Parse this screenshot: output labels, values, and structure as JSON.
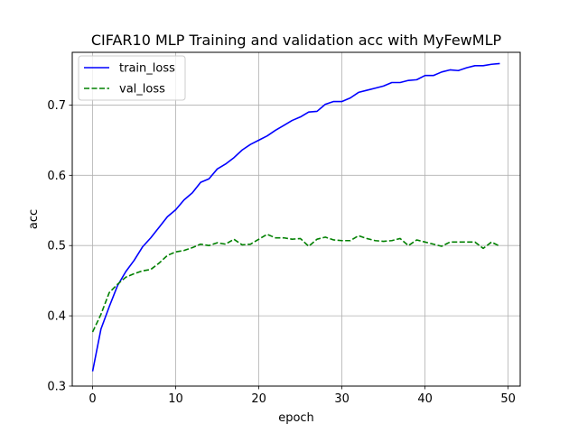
{
  "chart_data": {
    "type": "line",
    "title": "CIFAR10 MLP Training and validation acc with MyFewMLP",
    "xlabel": "epoch",
    "ylabel": "acc",
    "xlim": [
      -2.45,
      51.45
    ],
    "ylim": [
      0.3,
      0.775
    ],
    "xticks": [
      0,
      10,
      20,
      30,
      40,
      50
    ],
    "yticks": [
      0.3,
      0.4,
      0.5,
      0.6,
      0.7
    ],
    "grid": true,
    "legend": "top-left",
    "x": [
      0,
      1,
      2,
      3,
      4,
      5,
      6,
      7,
      8,
      9,
      10,
      11,
      12,
      13,
      14,
      15,
      16,
      17,
      18,
      19,
      20,
      21,
      22,
      23,
      24,
      25,
      26,
      27,
      28,
      29,
      30,
      31,
      32,
      33,
      34,
      35,
      36,
      37,
      38,
      39,
      40,
      41,
      42,
      43,
      44,
      45,
      46,
      47,
      48,
      49
    ],
    "series": [
      {
        "name": "train_loss",
        "color": "#0000ff",
        "style": "solid",
        "values": [
          0.321,
          0.381,
          0.413,
          0.443,
          0.463,
          0.479,
          0.498,
          0.511,
          0.526,
          0.541,
          0.551,
          0.565,
          0.575,
          0.59,
          0.595,
          0.609,
          0.616,
          0.625,
          0.636,
          0.644,
          0.65,
          0.656,
          0.664,
          0.671,
          0.678,
          0.683,
          0.69,
          0.691,
          0.701,
          0.705,
          0.705,
          0.71,
          0.718,
          0.721,
          0.724,
          0.727,
          0.732,
          0.732,
          0.735,
          0.736,
          0.742,
          0.742,
          0.747,
          0.75,
          0.749,
          0.753,
          0.756,
          0.756,
          0.758,
          0.759
        ]
      },
      {
        "name": "val_loss",
        "color": "#008000",
        "style": "dashed",
        "values": [
          0.377,
          0.402,
          0.433,
          0.445,
          0.455,
          0.46,
          0.464,
          0.466,
          0.475,
          0.486,
          0.491,
          0.493,
          0.497,
          0.502,
          0.5,
          0.504,
          0.502,
          0.509,
          0.501,
          0.502,
          0.509,
          0.516,
          0.511,
          0.511,
          0.509,
          0.51,
          0.499,
          0.509,
          0.512,
          0.508,
          0.507,
          0.507,
          0.514,
          0.51,
          0.507,
          0.506,
          0.507,
          0.51,
          0.5,
          0.508,
          0.505,
          0.502,
          0.499,
          0.505,
          0.505,
          0.505,
          0.505,
          0.496,
          0.505,
          0.499
        ]
      }
    ]
  }
}
